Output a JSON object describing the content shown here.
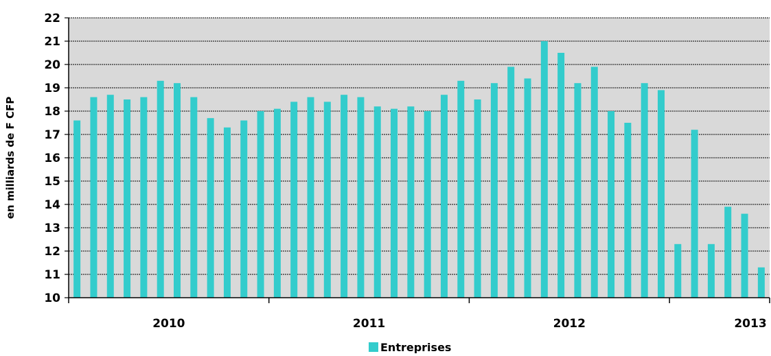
{
  "chart_data": {
    "type": "bar",
    "ylabel": "en  milliards de F CFP",
    "ylim": [
      10,
      22
    ],
    "yticks": [
      10,
      11,
      12,
      13,
      14,
      15,
      16,
      17,
      18,
      19,
      20,
      21,
      22
    ],
    "grid": true,
    "x_group_labels": [
      "2010",
      "2011",
      "2012",
      "2013"
    ],
    "series": [
      {
        "name": "Entreprises",
        "color": "#33cccc",
        "values": [
          17.6,
          18.6,
          18.7,
          18.5,
          18.6,
          19.3,
          19.2,
          18.6,
          17.7,
          17.3,
          17.6,
          18.0,
          18.1,
          18.4,
          18.6,
          18.4,
          18.7,
          18.6,
          18.2,
          18.1,
          18.2,
          18.0,
          18.7,
          19.3,
          18.5,
          19.2,
          19.9,
          19.4,
          21.0,
          20.5,
          19.2,
          19.9,
          18.0,
          17.5,
          19.2,
          18.9,
          12.3,
          17.2,
          12.3,
          13.9,
          13.6,
          11.3
        ]
      }
    ],
    "legend_position": "bottom-center",
    "plot_background": "#d9d9d9"
  }
}
